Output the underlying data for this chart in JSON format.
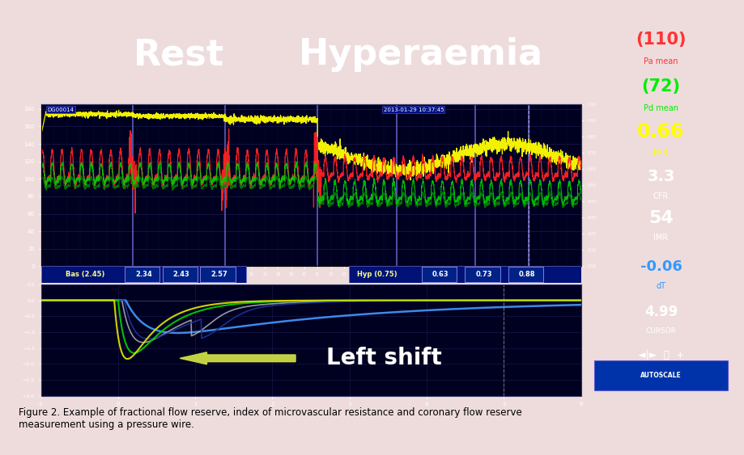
{
  "title_rest": "Rest",
  "title_hyper": "Hyperaemia",
  "title_color": "#ffffff",
  "bg_color": "#000000",
  "chart_bg": "#000020",
  "outer_bg": "#eedcdc",
  "caption": "Figure 2. Example of fractional flow reserve, index of microvascular resistance and coronary flow reserve\nmeasurement using a pressure wire.",
  "panel_top_label_left": "DG00014",
  "panel_top_label_right": "2013-01-29 10:37:45",
  "right_panel": {
    "pa_value": "(110)",
    "pa_label": "Pa mean",
    "pa_color": "#ff3333",
    "pd_value": "(72)",
    "pd_label": "Pd mean",
    "pd_color": "#00ee00",
    "ffr_value": "0.66",
    "ffr_label": "FFR",
    "ffr_color": "#ffff00",
    "cfr_value": "3.3",
    "cfr_label": "CFR",
    "cfr_color": "#ffffff",
    "imr_value": "54",
    "imr_label": "IMR",
    "imr_color": "#ffffff",
    "dt_value": "-0.06",
    "dt_label": "dT",
    "dt_color": "#3399ff",
    "cursor_value": "4.99",
    "cursor_label": "CURSOR",
    "cursor_color": "#ffffff"
  },
  "bas_label": "Bas (2.45)",
  "bas_values": [
    "2.34",
    "2.43",
    "2.57"
  ],
  "hyp_label": "Hyp (0.75)",
  "hyp_values": [
    "0.63",
    "0.73",
    "0.88"
  ],
  "left_shift_text": "Left shift",
  "arrow_color": "#ccdd44",
  "sep_lines": [
    7,
    14,
    21,
    27,
    33,
    37
  ],
  "cursor_line": 37
}
